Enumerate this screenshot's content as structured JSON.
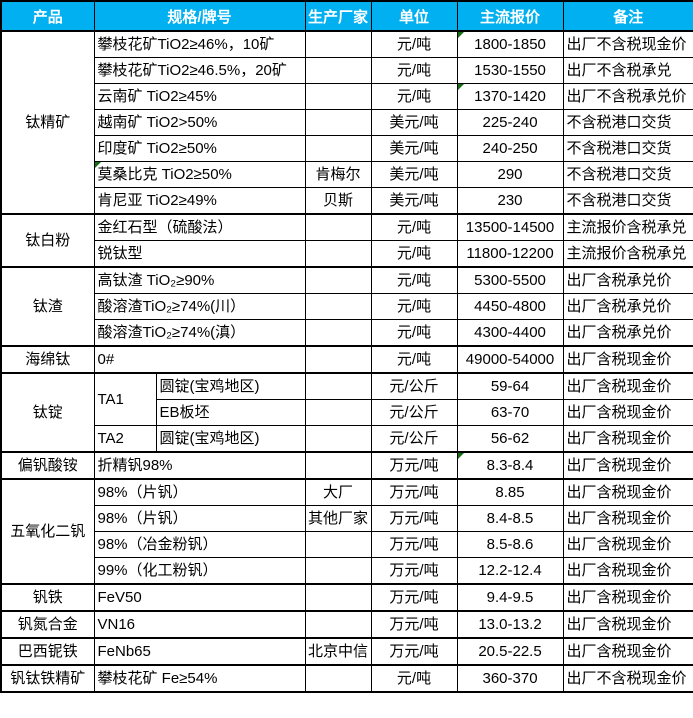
{
  "table": {
    "columns": [
      "产品",
      "规格/牌号",
      "生产厂家",
      "单位",
      "主流报价",
      "备注"
    ],
    "colors": {
      "header_bg": "#00B0F0",
      "header_text": "#FFFFFF",
      "border": "#000000",
      "flag_green": "#156D15"
    },
    "groups": [
      {
        "product": "钛精矿",
        "rows": [
          {
            "spec": "攀枝花矿TiO2≥46%，10矿",
            "maker": "",
            "unit": "元/吨",
            "price": "1800-1850",
            "note": "出厂不含税现金价",
            "flag": "price"
          },
          {
            "spec": "攀枝花矿TiO2≥46.5%，20矿",
            "maker": "",
            "unit": "元/吨",
            "price": "1530-1550",
            "note": "出厂不含税承兑"
          },
          {
            "spec": "云南矿 TiO2≥45%",
            "maker": "",
            "unit": "元/吨",
            "price": "1370-1420",
            "note": "出厂不含税承兑价",
            "flag": "price"
          },
          {
            "spec": "越南矿 TiO2>50%",
            "maker": "",
            "unit": "美元/吨",
            "price": "225-240",
            "note": "不含税港口交货"
          },
          {
            "spec": "印度矿 TiO2≥50%",
            "maker": "",
            "unit": "美元/吨",
            "price": "240-250",
            "note": "不含税港口交货"
          },
          {
            "spec": "莫桑比克 TiO2≥50%",
            "maker": "肯梅尔",
            "unit": "美元/吨",
            "price": "290",
            "note": "不含税港口交货",
            "flag": "spec"
          },
          {
            "spec": "肯尼亚 TiO2≥49%",
            "maker": "贝斯",
            "unit": "美元/吨",
            "price": "230",
            "note": "不含税港口交货"
          }
        ]
      },
      {
        "product": "钛白粉",
        "rows": [
          {
            "spec": "金红石型（硫酸法）",
            "maker": "",
            "unit": "元/吨",
            "price": "13500-14500",
            "note": "主流报价含税承兑"
          },
          {
            "spec": "锐钛型",
            "maker": "",
            "unit": "元/吨",
            "price": "11800-12200",
            "note": "主流报价含税承兑"
          }
        ]
      },
      {
        "product": "钛渣",
        "rows": [
          {
            "spec": "高钛渣 TiO₂≥90%",
            "maker": "",
            "unit": "元/吨",
            "price": "5300-5500",
            "note": "出厂含税承兑价"
          },
          {
            "spec": "酸溶渣TiO₂≥74%(川）",
            "maker": "",
            "unit": "元/吨",
            "price": "4450-4800",
            "note": "出厂含税承兑价"
          },
          {
            "spec": "酸溶渣TiO₂≥74%(滇）",
            "maker": "",
            "unit": "元/吨",
            "price": "4300-4400",
            "note": "出厂含税承兑价"
          }
        ]
      },
      {
        "product": "海绵钛",
        "rows": [
          {
            "spec": "0#",
            "maker": "",
            "unit": "元/吨",
            "price": "49000-54000",
            "note": "出厂含税现金价"
          }
        ]
      },
      {
        "product": "钛锭",
        "rows": [
          {
            "spec_main": "TA1",
            "spec_main_span": 2,
            "split": true,
            "spec": "圆锭(宝鸡地区)",
            "maker": "",
            "unit": "元/公斤",
            "price": "59-64",
            "note": "出厂含税现金价"
          },
          {
            "split": true,
            "spec": "EB板坯",
            "maker": "",
            "unit": "元/公斤",
            "price": "63-70",
            "note": "出厂含税现金价"
          },
          {
            "spec_main": "TA2",
            "spec_main_span": 1,
            "split": true,
            "spec": "圆锭(宝鸡地区)",
            "maker": "",
            "unit": "元/公斤",
            "price": "56-62",
            "note": "出厂含税现金价"
          }
        ]
      },
      {
        "product": "偏钒酸铵",
        "rows": [
          {
            "spec": "折精钒98%",
            "maker": "",
            "unit": "万元/吨",
            "price": "8.3-8.4",
            "note": "出厂含税现金价",
            "flag": "price"
          }
        ]
      },
      {
        "product": "五氧化二钒",
        "rows": [
          {
            "spec": "98%（片钒）",
            "maker": "大厂",
            "unit": "万元/吨",
            "price": "8.85",
            "note": "出厂含税现金价"
          },
          {
            "spec": "98%（片钒）",
            "maker": "其他厂家",
            "unit": "万元/吨",
            "price": "8.4-8.5",
            "note": "出厂含税现金价"
          },
          {
            "spec": "98%（冶金粉钒）",
            "maker": "",
            "unit": "万元/吨",
            "price": "8.5-8.6",
            "note": "出厂含税现金价"
          },
          {
            "spec": "99%（化工粉钒）",
            "maker": "",
            "unit": "万元/吨",
            "price": "12.2-12.4",
            "note": "出厂含税现金价"
          }
        ]
      },
      {
        "product": "钒铁",
        "rows": [
          {
            "spec": "FeV50",
            "maker": "",
            "unit": "万元/吨",
            "price": "9.4-9.5",
            "note": "出厂含税现金价"
          }
        ]
      },
      {
        "product": "钒氮合金",
        "rows": [
          {
            "spec": "VN16",
            "maker": "",
            "unit": "万元/吨",
            "price": "13.0-13.2",
            "note": "出厂含税现金价"
          }
        ]
      },
      {
        "product": "巴西铌铁",
        "rows": [
          {
            "spec": "FeNb65",
            "maker": "北京中信",
            "unit": "万元/吨",
            "price": "20.5-22.5",
            "note": "出厂含税现金价"
          }
        ]
      },
      {
        "product": "钒钛铁精矿",
        "rows": [
          {
            "spec": "攀枝花矿 Fe≥54%",
            "maker": "",
            "unit": "元/吨",
            "price": "360-370",
            "note": "出厂不含税现金价"
          }
        ]
      }
    ]
  }
}
